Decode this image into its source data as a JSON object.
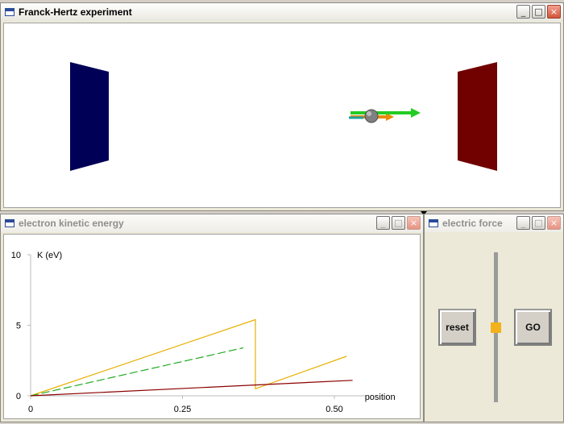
{
  "windows": {
    "main": {
      "title": "Franck-Hertz experiment"
    },
    "energy": {
      "title": "electron kinetic energy"
    },
    "force": {
      "title": "electric force"
    }
  },
  "window_buttons": {
    "minimize": "_",
    "maximize": "□",
    "close": "×"
  },
  "scene": {
    "left_plate_color": "#000057",
    "right_plate_color": "#710000",
    "electron_color": "#808080",
    "velocity_arrow_color": "#22cc22",
    "force_arrow_color": "#e88b0a"
  },
  "force_panel": {
    "reset_label": "reset",
    "go_label": "GO",
    "slider_level": 0.5
  },
  "chart_data": {
    "type": "line",
    "title": "",
    "xlabel": "position",
    "ylabel": "K (eV)",
    "xlim": [
      0,
      0.55
    ],
    "ylim": [
      0,
      10
    ],
    "xticks": [
      "0",
      "0.25",
      "0.50"
    ],
    "yticks": [
      "0",
      "5",
      "10"
    ],
    "series": [
      {
        "color": "#e8b000",
        "style": "solid",
        "points": [
          [
            0,
            0
          ],
          [
            0.37,
            5.4
          ],
          [
            0.37,
            0.5
          ],
          [
            0.52,
            2.8
          ]
        ]
      },
      {
        "color": "#22aa22",
        "style": "dashed",
        "points": [
          [
            0,
            0
          ],
          [
            0.35,
            3.4
          ]
        ]
      },
      {
        "color": "#8b0000",
        "style": "solid",
        "points": [
          [
            0,
            0
          ],
          [
            0.53,
            1.1
          ]
        ]
      }
    ]
  }
}
